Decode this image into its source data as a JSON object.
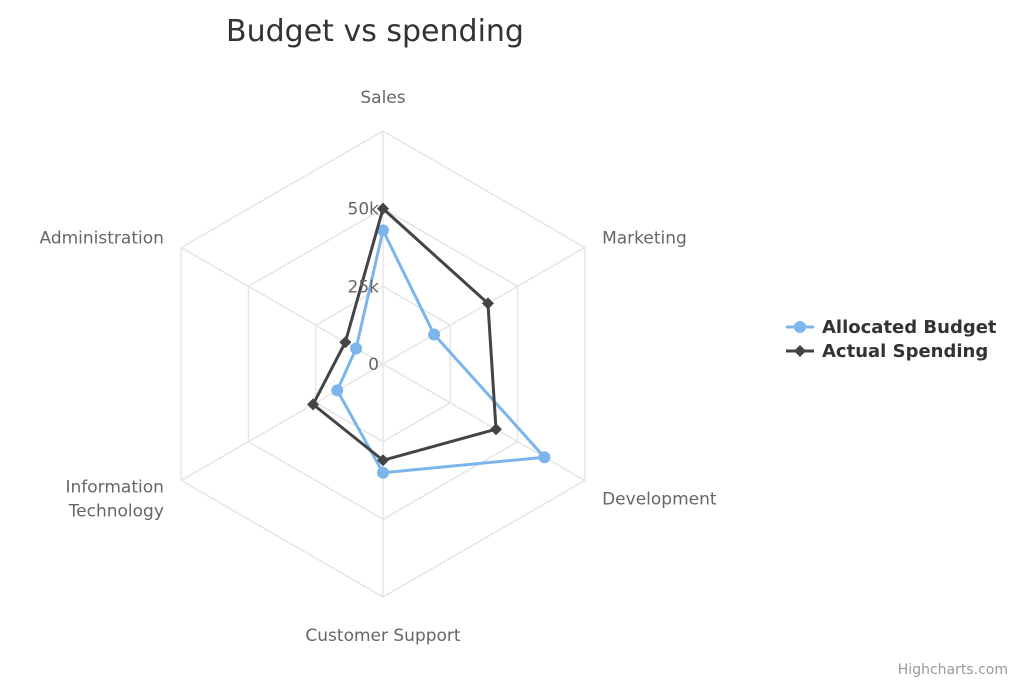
{
  "chart_data": {
    "type": "radar",
    "title": "Budget vs spending",
    "categories": [
      "Sales",
      "Marketing",
      "Development",
      "Customer Support",
      "Information Technology",
      "Administration"
    ],
    "category_display": [
      [
        "Sales"
      ],
      [
        "Marketing"
      ],
      [
        "Development"
      ],
      [
        "Customer Support"
      ],
      [
        "Information",
        "Technology"
      ],
      [
        "Administration"
      ]
    ],
    "radial_axis": {
      "min": 0,
      "max": 75000,
      "ticks": [
        0,
        25000,
        50000
      ],
      "tick_labels": [
        "0",
        "25k",
        "50k"
      ]
    },
    "grid": true,
    "gridline_shape": "polygon",
    "legend_position": "right",
    "series": [
      {
        "name": "Allocated Budget",
        "values": [
          43000,
          19000,
          60000,
          35000,
          17000,
          10000
        ],
        "color": "#7cb5ec",
        "marker": "circle"
      },
      {
        "name": "Actual Spending",
        "values": [
          50000,
          39000,
          42000,
          31000,
          26000,
          14000
        ],
        "color": "#434348",
        "marker": "diamond"
      }
    ]
  },
  "credits": "Highcharts.com"
}
